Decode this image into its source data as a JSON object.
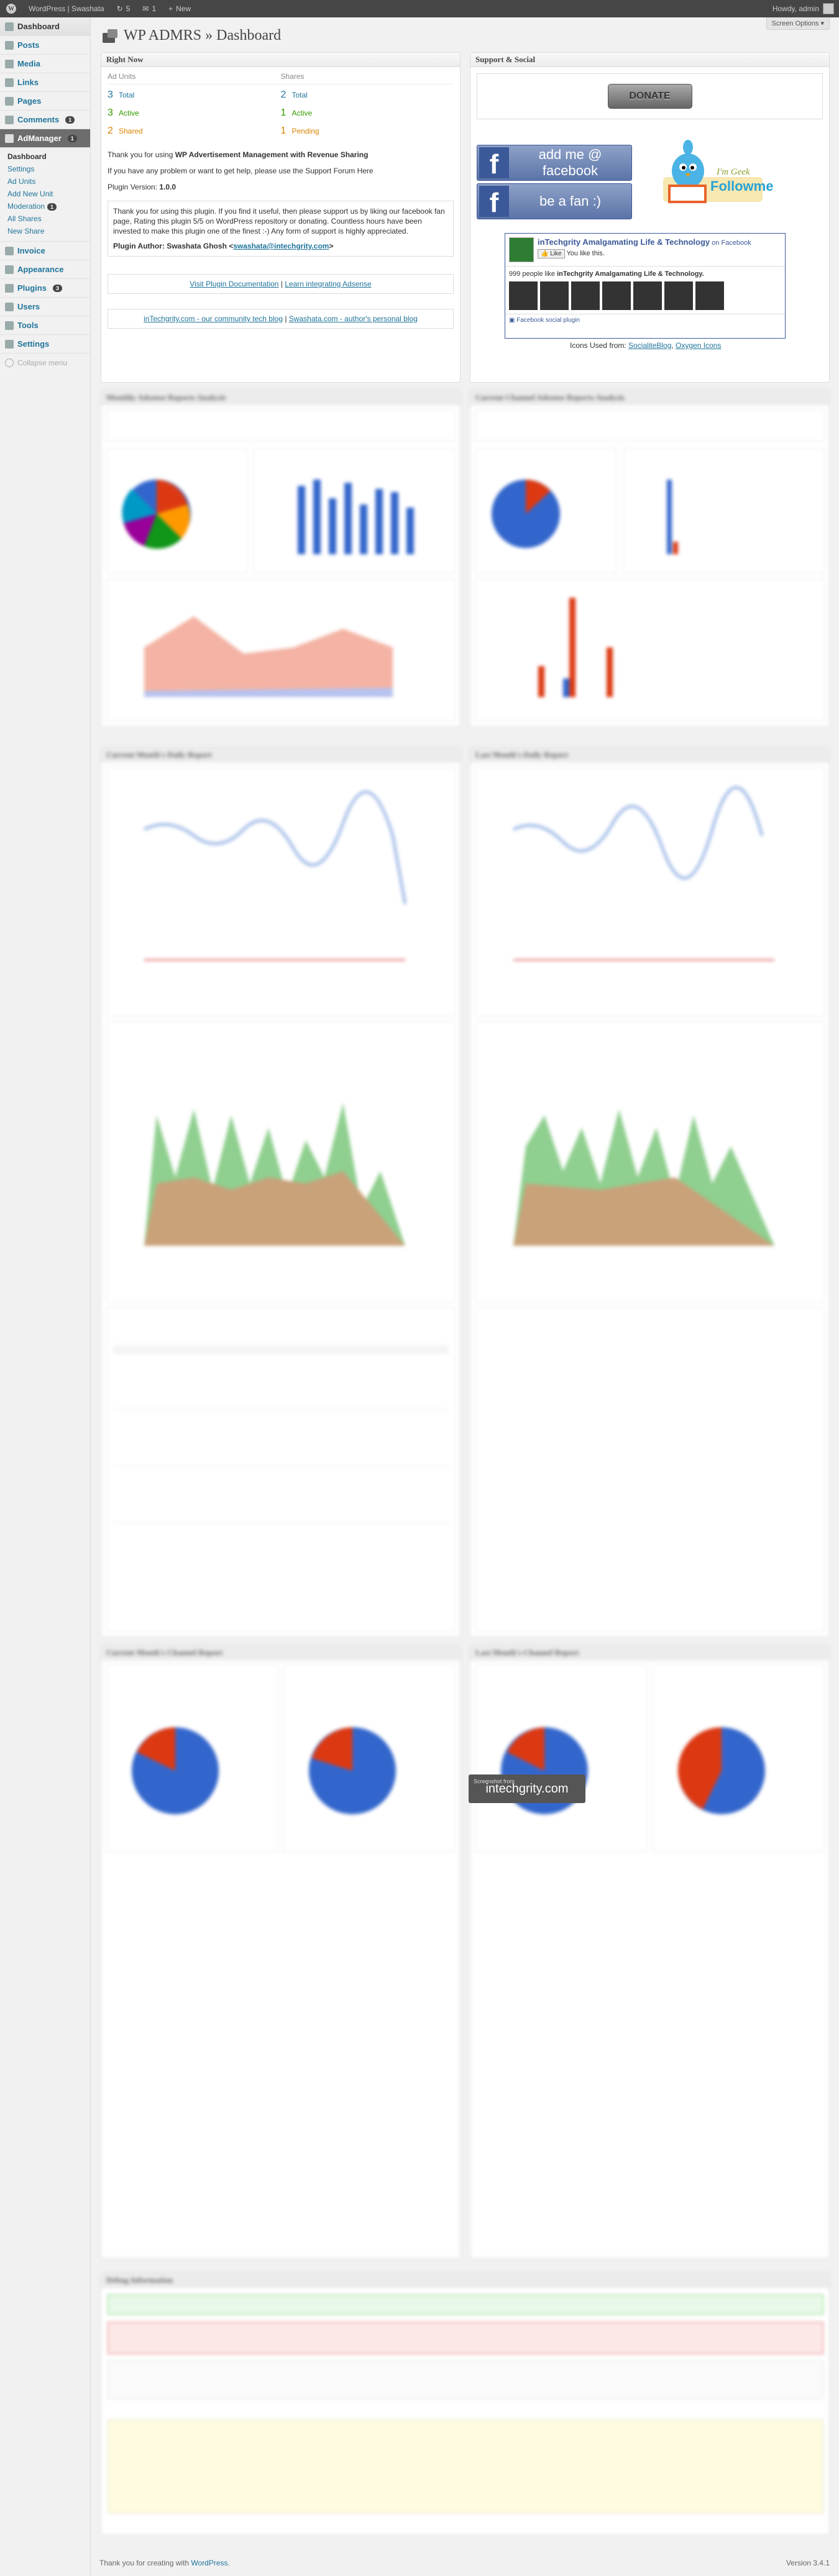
{
  "adminbar": {
    "site_name": "WordPress | Swashata",
    "updates": "5",
    "comments": "1",
    "new_label": "New",
    "howdy": "Howdy, admin"
  },
  "screen_options": "Screen Options",
  "page_title": "WP ADMRS » Dashboard",
  "sidebar": {
    "items": [
      {
        "label": "Dashboard"
      },
      {
        "label": "Posts"
      },
      {
        "label": "Media"
      },
      {
        "label": "Links"
      },
      {
        "label": "Pages"
      },
      {
        "label": "Comments",
        "badge": "1"
      },
      {
        "label": "AdManager",
        "badge": "1"
      }
    ],
    "submenu": [
      {
        "label": "Dashboard"
      },
      {
        "label": "Settings"
      },
      {
        "label": "Ad Units"
      },
      {
        "label": "Add New Unit"
      },
      {
        "label": "Moderation",
        "badge": "1"
      },
      {
        "label": "All Shares"
      },
      {
        "label": "New Share"
      }
    ],
    "items2": [
      {
        "label": "Invoice"
      },
      {
        "label": "Appearance"
      },
      {
        "label": "Plugins",
        "badge": "3"
      },
      {
        "label": "Users"
      },
      {
        "label": "Tools"
      },
      {
        "label": "Settings"
      }
    ],
    "collapse": "Collapse menu"
  },
  "right_now": {
    "title": "Right Now",
    "ad_units_header": "Ad Units",
    "shares_header": "Shares",
    "ad_units": [
      {
        "num": "3",
        "label": "Total"
      },
      {
        "num": "3",
        "label": "Active"
      },
      {
        "num": "2",
        "label": "Shared"
      }
    ],
    "shares": [
      {
        "num": "2",
        "label": "Total"
      },
      {
        "num": "1",
        "label": "Active"
      },
      {
        "num": "1",
        "label": "Pending"
      }
    ],
    "thanks_prefix": "Thank you for using ",
    "thanks_bold": "WP Advertisement Management with Revenue Sharing",
    "support_text": "If you have any problem or want to get help, please use the Support Forum Here",
    "version_label": "Plugin Version: ",
    "version_value": "1.0.0",
    "note": "Thank you for using this plugin. If you find it useful, then please support us by liking our facebook fan page, Rating this plugin 5/5 on WordPress repository or donating. Countless hours have been invested to make this plugin one of the finest :-) Any form of support is highly appreciated.",
    "author_label": "Plugin Author: Swashata Ghosh <",
    "author_email": "swashata@intechgrity.com",
    "author_suffix": ">",
    "doc_link": "Visit Plugin Documentation",
    "sep": " | ",
    "learn_link": "Learn integrating Adsense",
    "blog_link1": "inTechgrity.com - our community tech blog",
    "blog_link2": "Swashata.com - author's personal blog"
  },
  "support": {
    "title": "Support & Social",
    "donate": "DONATE",
    "fb_add": "add me @ facebook",
    "fb_fan": "be a fan :)",
    "follow_top": "I'm Geek",
    "follow_bottom": "Followme",
    "likebox_name": "inTechgrity Amalgamating Life & Technology",
    "likebox_on": " on Facebook",
    "likebox_like": "Like",
    "likebox_you": "You like this.",
    "likebox_people": "999 people like ",
    "likebox_people_name": "inTechgrity Amalgamating Life & Technology.",
    "likebox_plugin": "Facebook social plugin",
    "icons_used": "Icons Used from: ",
    "icons_src1": "SocialiteBlog",
    "icons_src2": "Oxygen Icons"
  },
  "blurred": {
    "monthly": "Monthly Adsense Reports Analysis",
    "channel_monthly": "Current Channel Adsense Reports Analysis",
    "cur_daily": "Current Month's Daily Report",
    "last_daily": "Last Month's Daily Report",
    "cur_channel": "Current Month's Channel Report",
    "last_channel": "Last Month's Channel Report",
    "debug": "Debug Information",
    "watermark_pre": "Screenshot from",
    "watermark": "intechgrity.com"
  },
  "footer": {
    "thanks": "Thank you for creating with ",
    "wp": "WordPress",
    "version": "Version 3.4.1"
  },
  "colors": {
    "adminbar": "#464646",
    "link": "#21759b",
    "facebook": "#3b5998",
    "green": "#339900",
    "orange": "#d98500"
  }
}
